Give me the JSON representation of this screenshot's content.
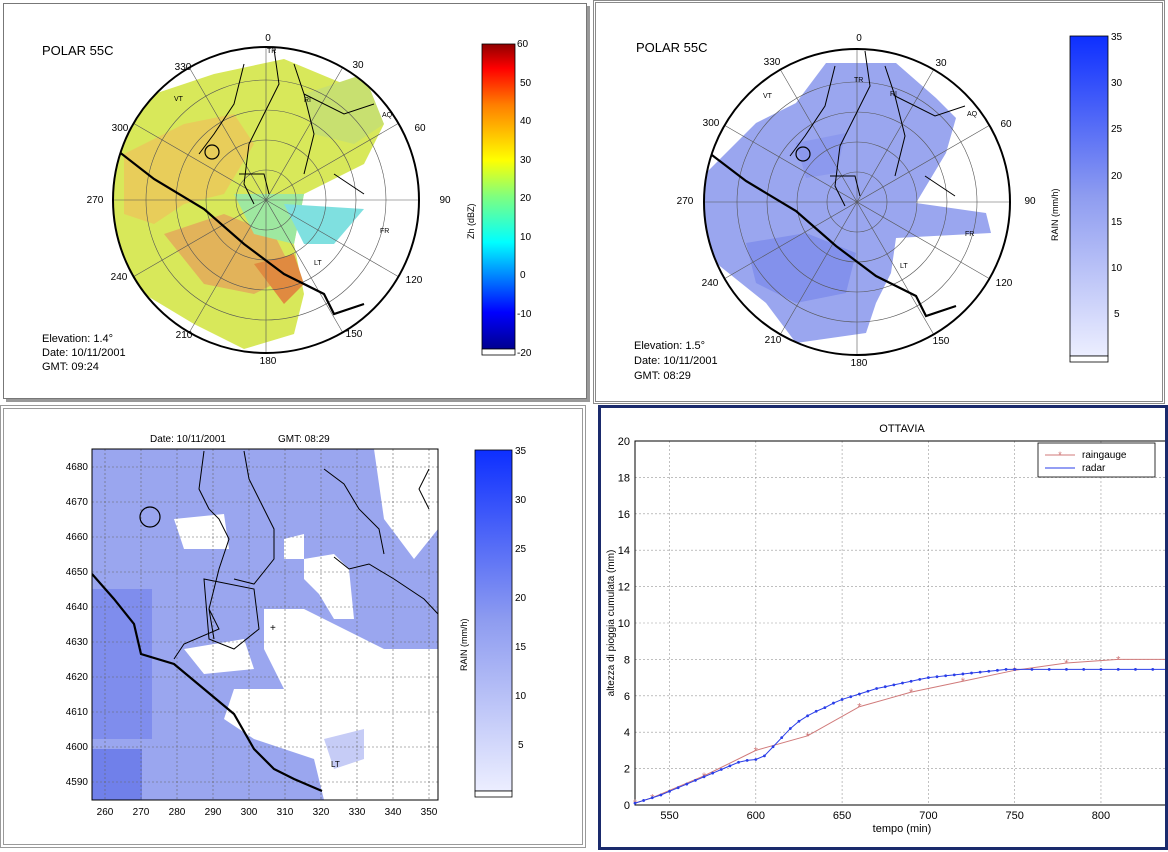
{
  "colors": {
    "rain_base": "#9aa6ef",
    "rain_mid": "#7f8deb",
    "rain_dark": "#3f4fe0",
    "raingauge": "#d07a7a",
    "radar": "#2a3ee8"
  },
  "panel_zh": {
    "title": "POLAR 55C",
    "azimuth_labels": [
      "0",
      "30",
      "60",
      "90",
      "120",
      "150",
      "180",
      "210",
      "240",
      "270",
      "300",
      "330"
    ],
    "sites": [
      "TR",
      "RI",
      "AQ",
      "VT",
      "FR",
      "LT"
    ],
    "colorbar_label": "Zh (dBZ)",
    "colorbar_ticks": [
      "60",
      "50",
      "40",
      "30",
      "20",
      "10",
      "0",
      "-10",
      "-20"
    ],
    "elevation": "Elevation:  1.4°",
    "date": "Date:  10/11/2001",
    "gmt": "GMT:   09:24"
  },
  "panel_rain_polar": {
    "title": "POLAR 55C",
    "azimuth_labels": [
      "0",
      "30",
      "60",
      "90",
      "120",
      "150",
      "180",
      "210",
      "240",
      "270",
      "300",
      "330"
    ],
    "sites": [
      "TR",
      "RI",
      "AQ",
      "VT",
      "FR",
      "LT"
    ],
    "colorbar_label": "RAIN   (mm/h)",
    "colorbar_ticks": [
      "35",
      "30",
      "25",
      "20",
      "15",
      "10",
      "5"
    ],
    "elevation": "Elevation:  1.5°",
    "date": "Date:  10/11/2001",
    "gmt": "GMT:   08:29"
  },
  "panel_rain_grid": {
    "date": "Date:  10/11/2001",
    "gmt": "GMT:  08:29",
    "y_ticks": [
      "4680",
      "4670",
      "4660",
      "4650",
      "4640",
      "4630",
      "4620",
      "4610",
      "4600",
      "4590"
    ],
    "x_ticks": [
      "260",
      "270",
      "280",
      "290",
      "300",
      "310",
      "320",
      "330",
      "340",
      "350"
    ],
    "site": "LT",
    "colorbar_label": "RAIN  (mm/h)",
    "colorbar_ticks": [
      "35",
      "30",
      "25",
      "20",
      "15",
      "10",
      "5"
    ]
  },
  "chart_data": {
    "type": "line",
    "title": "OTTAVIA",
    "xlabel": "tempo (min)",
    "ylabel": "altezza di pioggia cumulata (mm)",
    "xlim": [
      530,
      840
    ],
    "ylim": [
      0,
      20
    ],
    "x_ticks": [
      550,
      600,
      650,
      700,
      750,
      800
    ],
    "y_ticks": [
      0,
      2,
      4,
      6,
      8,
      10,
      12,
      14,
      16,
      18,
      20
    ],
    "grid": true,
    "legend": "top-right",
    "series": [
      {
        "name": "raingauge",
        "x": [
          530,
          540,
          570,
          600,
          630,
          660,
          690,
          720,
          750,
          780,
          810,
          840
        ],
        "y": [
          0.1,
          0.4,
          1.6,
          3.0,
          3.8,
          5.4,
          6.2,
          6.8,
          7.4,
          7.8,
          8.0,
          8.0
        ]
      },
      {
        "name": "radar",
        "x": [
          530,
          535,
          540,
          545,
          550,
          555,
          560,
          565,
          570,
          575,
          580,
          585,
          590,
          595,
          600,
          605,
          610,
          615,
          620,
          625,
          630,
          635,
          640,
          645,
          650,
          655,
          660,
          665,
          670,
          675,
          680,
          685,
          690,
          695,
          700,
          705,
          710,
          715,
          720,
          725,
          730,
          735,
          740,
          745,
          750,
          760,
          770,
          780,
          790,
          800,
          810,
          820,
          830,
          840
        ],
        "y": [
          0.1,
          0.25,
          0.4,
          0.55,
          0.75,
          0.95,
          1.15,
          1.35,
          1.55,
          1.75,
          1.95,
          2.15,
          2.35,
          2.45,
          2.5,
          2.7,
          3.2,
          3.7,
          4.2,
          4.6,
          4.9,
          5.15,
          5.35,
          5.6,
          5.8,
          5.95,
          6.1,
          6.25,
          6.4,
          6.5,
          6.6,
          6.7,
          6.8,
          6.9,
          7.0,
          7.05,
          7.1,
          7.15,
          7.2,
          7.25,
          7.3,
          7.35,
          7.4,
          7.45,
          7.45,
          7.45,
          7.45,
          7.45,
          7.45,
          7.45,
          7.45,
          7.45,
          7.45,
          7.45
        ]
      }
    ]
  }
}
